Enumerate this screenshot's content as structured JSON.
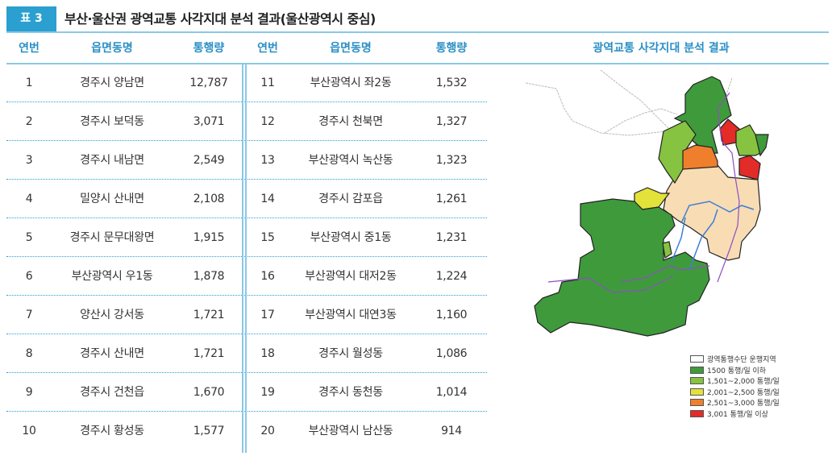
{
  "title": {
    "badge": "표 3",
    "text": "부산·울산권 광역교통 사각지대 분석 결과(울산광역시 중심)"
  },
  "headers": {
    "no": "연번",
    "area": "읍면동명",
    "volume": "통행량",
    "map": "광역교통 사각지대 분석 결과"
  },
  "rows_left": [
    {
      "no": "1",
      "area": "경주시 양남면",
      "volume": "12,787"
    },
    {
      "no": "2",
      "area": "경주시 보덕동",
      "volume": "3,071"
    },
    {
      "no": "3",
      "area": "경주시 내남면",
      "volume": "2,549"
    },
    {
      "no": "4",
      "area": "밀양시 산내면",
      "volume": "2,108"
    },
    {
      "no": "5",
      "area": "경주시 문무대왕면",
      "volume": "1,915"
    },
    {
      "no": "6",
      "area": "부산광역시 우1동",
      "volume": "1,878"
    },
    {
      "no": "7",
      "area": "양산시 강서동",
      "volume": "1,721"
    },
    {
      "no": "8",
      "area": "경주시 산내면",
      "volume": "1,721"
    },
    {
      "no": "9",
      "area": "경주시 건천읍",
      "volume": "1,670"
    },
    {
      "no": "10",
      "area": "경주시 황성동",
      "volume": "1,577"
    }
  ],
  "rows_right": [
    {
      "no": "11",
      "area": "부산광역시 좌2동",
      "volume": "1,532"
    },
    {
      "no": "12",
      "area": "경주시 천북면",
      "volume": "1,327"
    },
    {
      "no": "13",
      "area": "부산광역시 녹산동",
      "volume": "1,323"
    },
    {
      "no": "14",
      "area": "경주시 감포읍",
      "volume": "1,261"
    },
    {
      "no": "15",
      "area": "부산광역시 중1동",
      "volume": "1,231"
    },
    {
      "no": "16",
      "area": "부산광역시 대저2동",
      "volume": "1,224"
    },
    {
      "no": "17",
      "area": "부산광역시 대연3동",
      "volume": "1,160"
    },
    {
      "no": "18",
      "area": "경주시 월성동",
      "volume": "1,086"
    },
    {
      "no": "19",
      "area": "경주시 동천동",
      "volume": "1,014"
    },
    {
      "no": "20",
      "area": "부산광역시 남산동",
      "volume": "914"
    }
  ],
  "legend": [
    {
      "label": "광역통행수단 운행지역",
      "color": "#ffffff"
    },
    {
      "label": "1500 통행/일 이하",
      "color": "#3f9a3c"
    },
    {
      "label": "1,501~2,000 통행/일",
      "color": "#86c341"
    },
    {
      "label": "2,001~2,500 통행/일",
      "color": "#e3e23a"
    },
    {
      "label": "2,501~3,000 통행/일",
      "color": "#ef7f2c"
    },
    {
      "label": "3,001 통행/일 이상",
      "color": "#e32b27"
    }
  ],
  "map_colors": {
    "service": "#f8dcb4",
    "low": "#3f9a3c",
    "mid": "#86c341",
    "yellow": "#e3e23a",
    "orange": "#ef7f2c",
    "red": "#e32b27"
  }
}
